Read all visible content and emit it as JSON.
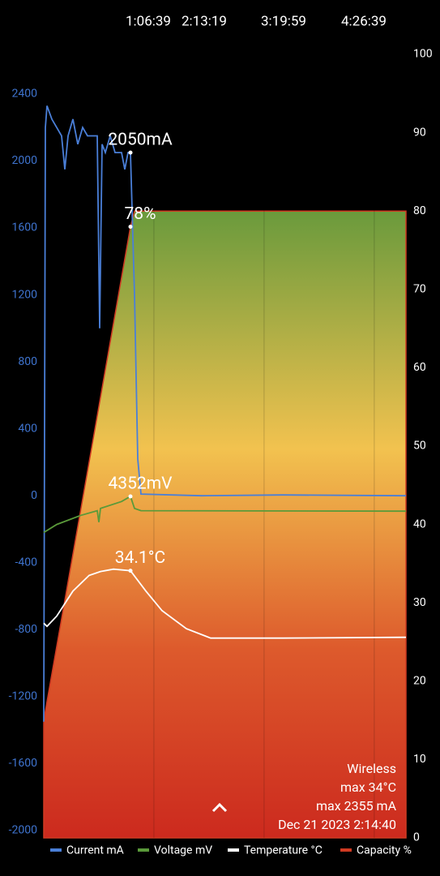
{
  "chart_data": {
    "type": "line",
    "xlim": [
      0,
      13150
    ],
    "xticks": [
      {
        "value": 3999,
        "label": "1:06:39"
      },
      {
        "value": 7999,
        "label": "2:13:19"
      },
      {
        "value": 11999,
        "label": "3:19:59"
      },
      {
        "value": 15999,
        "label": "4:26:39"
      }
    ],
    "ylim": [
      -2044,
      2637
    ],
    "yticks": [
      2400,
      2000,
      1600,
      1200,
      800,
      400,
      0,
      -400,
      -800,
      -1200,
      -1600,
      -2000
    ],
    "y2lim": [
      0,
      100
    ],
    "y2ticks": [
      100,
      90,
      80,
      70,
      60,
      50,
      40,
      30,
      20,
      10,
      0
    ],
    "y3lim": [
      2866,
      6276
    ],
    "series": [
      {
        "name": "Current mA",
        "color": "#4a7fd8",
        "axis": "y",
        "x": [
          0,
          59,
          118,
          294,
          471,
          647,
          765,
          883,
          1059,
          1236,
          1412,
          1589,
          1765,
          1942,
          2030,
          2118,
          2236,
          2412,
          2589,
          2824,
          2942,
          3059,
          3148,
          3295,
          3412,
          3530,
          5737,
          8679,
          13150
        ],
        "values": [
          -1350,
          2200,
          2330,
          2250,
          2200,
          2150,
          1950,
          2150,
          2250,
          2100,
          2200,
          2150,
          2150,
          2150,
          1000,
          2100,
          2050,
          2150,
          2050,
          2050,
          1950,
          2050,
          2050,
          1200,
          220,
          10,
          0,
          5,
          0
        ]
      },
      {
        "name": "Voltage mV",
        "color": "#5a9a3a",
        "axis": "y3",
        "x": [
          0,
          471,
          1353,
          1942,
          2000,
          2059,
          2824,
          3148,
          3295,
          3530,
          13150
        ],
        "values": [
          4195,
          4230,
          4270,
          4290,
          4240,
          4300,
          4330,
          4352,
          4300,
          4290,
          4288
        ]
      },
      {
        "name": "Temperature °C",
        "color": "#ffffff",
        "axis": "y2",
        "x": [
          0,
          118,
          471,
          1059,
          1647,
          2059,
          2530,
          3148,
          3707,
          4295,
          5178,
          6061,
          8679,
          13150
        ],
        "values": [
          27.4,
          27.0,
          28.3,
          31.5,
          33.5,
          34.0,
          34.3,
          34.1,
          31.5,
          29,
          26.7,
          25.5,
          25.5,
          25.6
        ]
      },
      {
        "name": "Capacity %",
        "color": "#d03a22",
        "axis": "y2",
        "area": true,
        "x": [
          0,
          3148,
          3295,
          13150
        ],
        "values": [
          15,
          78,
          80,
          80
        ]
      }
    ],
    "annotations": [
      {
        "text": "2050mA",
        "series": 0,
        "index": 22
      },
      {
        "text": "78%",
        "series": 3,
        "index": 1
      },
      {
        "text": "4352mV",
        "series": 1,
        "index": 7
      },
      {
        "text": "34.1°C",
        "series": 2,
        "index": 7
      }
    ],
    "info": [
      "Wireless",
      "max 34°C",
      "max 2355 mA",
      "Dec 21 2023 2:14:40"
    ]
  }
}
